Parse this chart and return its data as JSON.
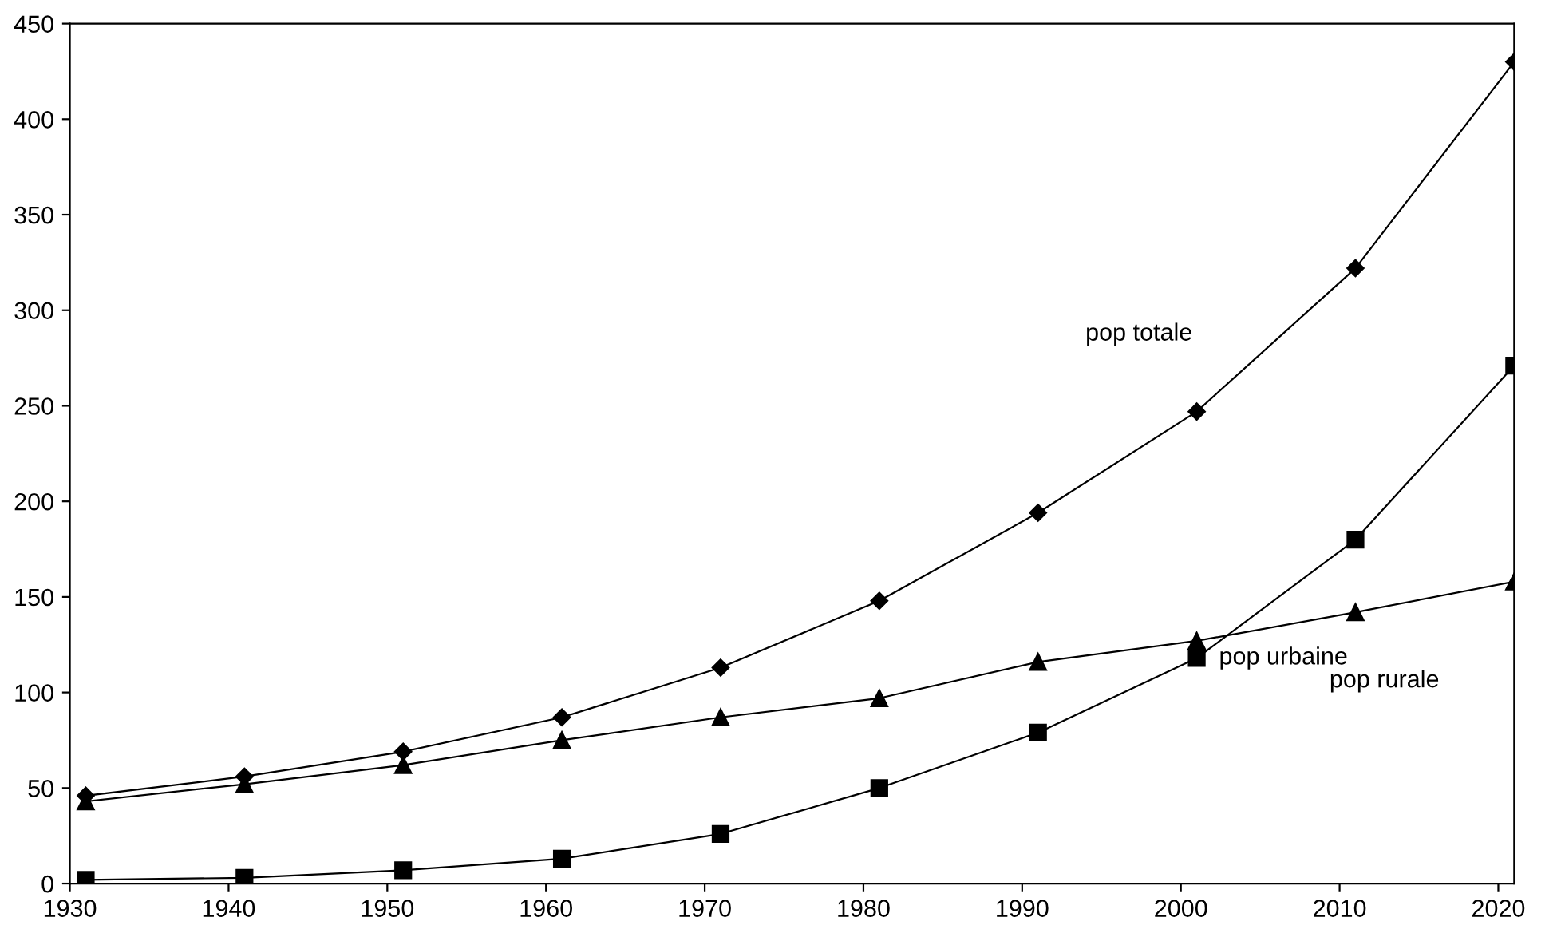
{
  "chart_data": {
    "type": "line",
    "x": [
      1931,
      1941,
      1951,
      1961,
      1971,
      1981,
      1991,
      2001,
      2011,
      2021
    ],
    "series": [
      {
        "name": "pop totale",
        "color": "#000000",
        "marker": "diamond",
        "values": [
          46,
          56,
          69,
          87,
          113,
          148,
          194,
          247,
          322,
          430
        ]
      },
      {
        "name": "pop urbaine",
        "color": "#000000",
        "marker": "square",
        "values": [
          2,
          3,
          7,
          13,
          26,
          50,
          79,
          118,
          180,
          271
        ]
      },
      {
        "name": "pop rurale",
        "color": "#000000",
        "marker": "triangle",
        "values": [
          43,
          52,
          62,
          75,
          87,
          97,
          116,
          127,
          142,
          158
        ]
      }
    ],
    "xlim": [
      1930,
      2021
    ],
    "xticks": [
      1930,
      1940,
      1950,
      1960,
      1970,
      1980,
      1990,
      2000,
      2010,
      2020
    ],
    "ylim": [
      0,
      450
    ],
    "yticks": [
      0,
      50,
      100,
      150,
      200,
      250,
      300,
      350,
      400,
      450
    ],
    "grid": false,
    "legend": false,
    "line_style": "solid"
  }
}
